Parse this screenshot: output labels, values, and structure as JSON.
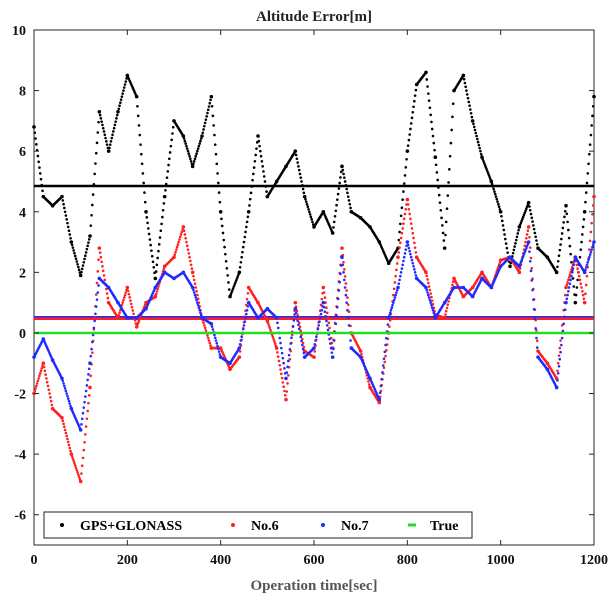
{
  "chart_data": {
    "type": "scatter",
    "title": "Altitude Error[m]",
    "xlabel": "Operation time[sec]",
    "ylabel": "",
    "xlim": [
      0,
      1200
    ],
    "ylim": [
      -7,
      10
    ],
    "xticks": [
      0,
      200,
      400,
      600,
      800,
      1000,
      1200
    ],
    "yticks": [
      -6,
      -4,
      -2,
      0,
      2,
      4,
      6,
      8,
      10
    ],
    "grid": false,
    "legend_position": "bottom",
    "series": [
      {
        "name": "GPS+GLONASS",
        "color": "#000000",
        "style": "dots",
        "x": [
          0,
          20,
          40,
          60,
          80,
          100,
          120,
          140,
          160,
          180,
          200,
          220,
          240,
          260,
          280,
          300,
          320,
          340,
          360,
          380,
          400,
          420,
          440,
          460,
          480,
          500,
          520,
          540,
          560,
          580,
          600,
          620,
          640,
          660,
          680,
          700,
          720,
          740,
          760,
          780,
          800,
          820,
          840,
          860,
          880,
          900,
          920,
          940,
          960,
          980,
          1000,
          1020,
          1040,
          1060,
          1080,
          1100,
          1120,
          1140,
          1160,
          1180,
          1200
        ],
        "y": [
          6.8,
          4.5,
          4.2,
          4.5,
          3.0,
          1.9,
          3.2,
          7.3,
          6.0,
          7.3,
          8.5,
          7.8,
          4.0,
          1.8,
          4.5,
          7.0,
          6.5,
          5.5,
          6.5,
          7.8,
          4.0,
          1.2,
          2.0,
          4.0,
          6.5,
          4.5,
          5.0,
          5.5,
          6.0,
          4.5,
          3.5,
          4.0,
          3.3,
          5.5,
          4.0,
          3.8,
          3.5,
          3.0,
          2.3,
          2.8,
          6.0,
          8.2,
          8.6,
          5.8,
          2.8,
          8.0,
          8.5,
          7.0,
          5.8,
          5.0,
          4.0,
          2.2,
          3.5,
          4.3,
          2.8,
          2.5,
          2.0,
          4.2,
          1.0,
          4.0,
          7.8
        ]
      },
      {
        "name": "No.6",
        "color": "#ff2020",
        "style": "dots",
        "x": [
          0,
          20,
          40,
          60,
          80,
          100,
          120,
          140,
          160,
          180,
          200,
          220,
          240,
          260,
          280,
          300,
          320,
          340,
          360,
          380,
          400,
          420,
          440,
          460,
          480,
          500,
          520,
          540,
          560,
          580,
          600,
          620,
          640,
          660,
          680,
          700,
          720,
          740,
          760,
          780,
          800,
          820,
          840,
          860,
          880,
          900,
          920,
          940,
          960,
          980,
          1000,
          1020,
          1040,
          1060,
          1080,
          1100,
          1120,
          1140,
          1160,
          1180,
          1200
        ],
        "y": [
          -2.0,
          -1.0,
          -2.5,
          -2.8,
          -4.0,
          -4.9,
          -1.8,
          2.8,
          1.0,
          0.5,
          1.5,
          0.2,
          1.0,
          1.2,
          2.2,
          2.5,
          3.5,
          2.0,
          0.5,
          -0.5,
          -0.5,
          -1.2,
          -0.8,
          1.5,
          1.0,
          0.4,
          -0.5,
          -2.2,
          1.0,
          -0.6,
          -0.8,
          1.5,
          -0.5,
          2.8,
          0.0,
          -0.6,
          -1.8,
          -2.3,
          0.0,
          2.5,
          4.4,
          2.5,
          2.0,
          0.6,
          0.5,
          1.8,
          1.2,
          1.5,
          2.0,
          1.5,
          2.4,
          2.5,
          2.0,
          3.5,
          -0.6,
          -1.0,
          -1.5,
          1.5,
          2.5,
          1.0,
          4.5
        ]
      },
      {
        "name": "No.7",
        "color": "#1f2bff",
        "style": "dots",
        "x": [
          0,
          20,
          40,
          60,
          80,
          100,
          120,
          140,
          160,
          180,
          200,
          220,
          240,
          260,
          280,
          300,
          320,
          340,
          360,
          380,
          400,
          420,
          440,
          460,
          480,
          500,
          520,
          540,
          560,
          580,
          600,
          620,
          640,
          660,
          680,
          700,
          720,
          740,
          760,
          780,
          800,
          820,
          840,
          860,
          880,
          900,
          920,
          940,
          960,
          980,
          1000,
          1020,
          1040,
          1060,
          1080,
          1100,
          1120,
          1140,
          1160,
          1180,
          1200
        ],
        "y": [
          -0.8,
          -0.2,
          -0.9,
          -1.5,
          -2.5,
          -3.2,
          -1.0,
          1.8,
          1.5,
          1.0,
          0.5,
          0.5,
          0.8,
          1.5,
          2.0,
          1.8,
          2.0,
          1.5,
          0.5,
          0.3,
          -0.8,
          -1.0,
          -0.5,
          1.0,
          0.5,
          0.8,
          0.5,
          -1.5,
          0.8,
          -0.8,
          -0.5,
          1.0,
          -0.8,
          2.5,
          -0.5,
          -0.8,
          -1.5,
          -2.2,
          0.5,
          1.5,
          3.0,
          1.8,
          1.5,
          0.5,
          1.0,
          1.5,
          1.5,
          1.2,
          1.8,
          1.5,
          2.2,
          2.5,
          2.2,
          3.0,
          -0.8,
          -1.2,
          -1.8,
          1.0,
          2.5,
          2.0,
          3.0
        ]
      },
      {
        "name": "True",
        "color": "#22dd22",
        "style": "line",
        "x": [
          0,
          1200
        ],
        "y": [
          0,
          0
        ]
      }
    ],
    "reference_lines": [
      {
        "y": 4.85,
        "color": "#000000"
      },
      {
        "y": 0.52,
        "color": "#1f2bff"
      },
      {
        "y": 0.47,
        "color": "#ff2020"
      }
    ]
  }
}
